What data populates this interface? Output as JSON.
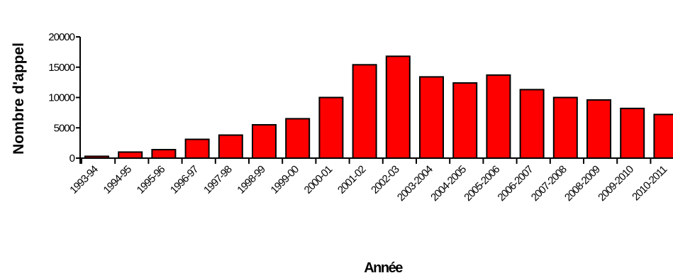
{
  "chart_data": {
    "type": "bar",
    "categories": [
      "1993-94",
      "1994-95",
      "1995-96",
      "1996-97",
      "1997-98",
      "1998-99",
      "1999-00",
      "2000-01",
      "2001-02",
      "2002-03",
      "2003-2004",
      "2004-2005",
      "2005-2006",
      "2006-2007",
      "2007-2008",
      "2008-2009",
      "2009-2010",
      "2010-2011"
    ],
    "values": [
      300,
      1000,
      1400,
      3100,
      3800,
      5500,
      6500,
      10000,
      15400,
      16800,
      13400,
      12400,
      13700,
      11300,
      10000,
      9600,
      8200,
      7200
    ],
    "ylabel": "Nombre d'appel",
    "xlabel": "Année",
    "ylim": [
      0,
      20000
    ],
    "yticks": [
      0,
      5000,
      10000,
      15000,
      20000
    ],
    "bar_color": "#ff0000",
    "grid": false,
    "legend": "none"
  }
}
